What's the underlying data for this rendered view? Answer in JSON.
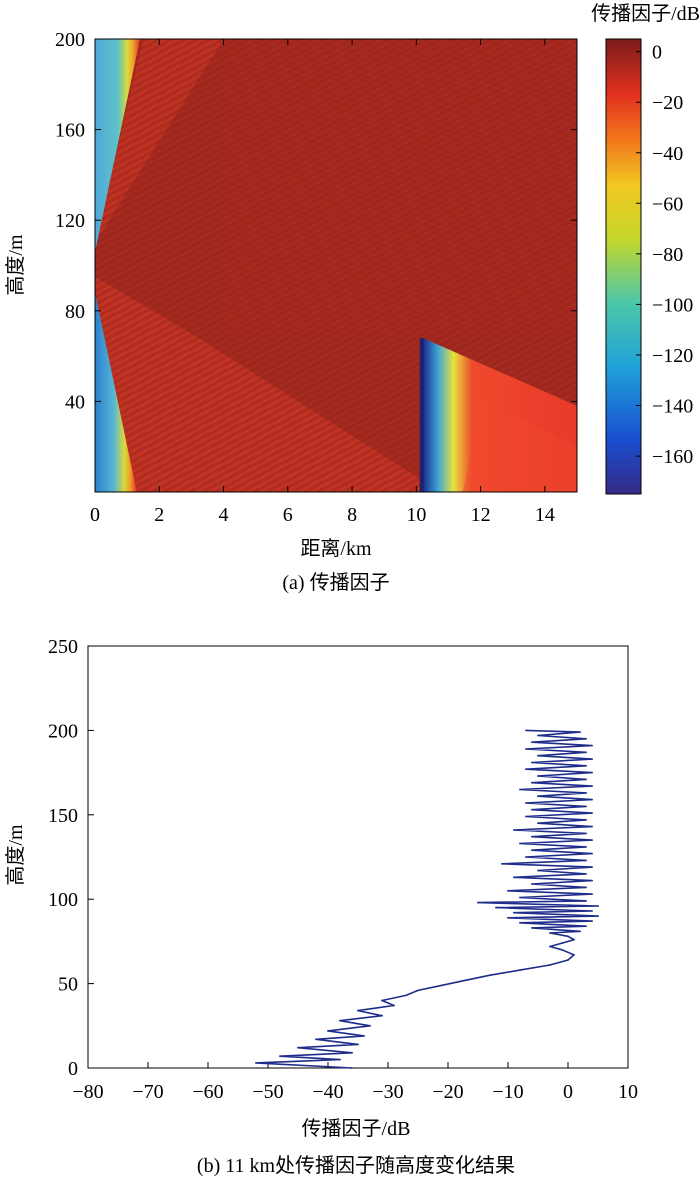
{
  "chart_data": [
    {
      "type": "heatmap",
      "title": "",
      "caption": "(a) 传播因子",
      "xlabel": "距离/km",
      "ylabel": "高度/m",
      "xlim": [
        0,
        15
      ],
      "ylim": [
        0,
        200
      ],
      "xticks": [
        0,
        2,
        4,
        6,
        8,
        10,
        12,
        14
      ],
      "yticks": [
        40,
        80,
        120,
        160,
        200
      ],
      "xtick_labels": [
        "0",
        "2",
        "4",
        "6",
        "8",
        "10",
        "12",
        "14"
      ],
      "ytick_labels": [
        "40",
        "80",
        "120",
        "160",
        "200"
      ],
      "colorbar": {
        "label": "传播因子/dB",
        "range": [
          -175,
          5
        ],
        "ticks": [
          0,
          -20,
          -40,
          -60,
          -80,
          -100,
          -120,
          -140,
          -160
        ],
        "tick_labels": [
          "0",
          "−20",
          "−40",
          "−60",
          "−80",
          "−100",
          "−120",
          "−140",
          "−160"
        ],
        "colormap": "jet"
      },
      "features": {
        "background_dB": -5,
        "source_height_m": 100,
        "near_source_low_region_dB": -120,
        "shadow_start_km": 10.2,
        "shadow_top_m": 68,
        "shadow_region_dB": -20,
        "shadow_edge_dB": -170
      }
    },
    {
      "type": "line",
      "title": "",
      "caption": "(b) 11 km处传播因子随高度变化结果",
      "xlabel": "传播因子/dB",
      "ylabel": "高度/m",
      "xlim": [
        -80,
        10
      ],
      "ylim": [
        0,
        250
      ],
      "xticks": [
        -80,
        -70,
        -60,
        -50,
        -40,
        -30,
        -20,
        -10,
        0,
        10
      ],
      "yticks": [
        0,
        50,
        100,
        150,
        200,
        250
      ],
      "xtick_labels": [
        "−80",
        "−70",
        "−60",
        "−50",
        "−40",
        "−30",
        "−20",
        "−10",
        "0",
        "10"
      ],
      "ytick_labels": [
        "0",
        "50",
        "100",
        "150",
        "200",
        "250"
      ],
      "series": [
        {
          "color": "#1f2d8a",
          "points": [
            [
              -36,
              0
            ],
            [
              -52,
              3
            ],
            [
              -38,
              5
            ],
            [
              -48,
              7
            ],
            [
              -36,
              9
            ],
            [
              -45,
              12
            ],
            [
              -35,
              14
            ],
            [
              -42,
              17
            ],
            [
              -34,
              19
            ],
            [
              -40,
              22
            ],
            [
              -33,
              25
            ],
            [
              -38,
              28
            ],
            [
              -31,
              31
            ],
            [
              -35,
              34
            ],
            [
              -29,
              37
            ],
            [
              -31,
              40
            ],
            [
              -27,
              43
            ],
            [
              -25,
              46
            ],
            [
              -21,
              49
            ],
            [
              -17,
              52
            ],
            [
              -13,
              55
            ],
            [
              -8,
              58
            ],
            [
              -3,
              61
            ],
            [
              0,
              64
            ],
            [
              1,
              67
            ],
            [
              -1,
              70
            ],
            [
              -3,
              72
            ],
            [
              -1,
              74
            ],
            [
              1,
              76
            ],
            [
              0,
              78
            ],
            [
              -3,
              80
            ],
            [
              2,
              81
            ],
            [
              -6,
              83
            ],
            [
              3,
              84
            ],
            [
              -8,
              86
            ],
            [
              4,
              87
            ],
            [
              -10,
              89
            ],
            [
              5,
              90
            ],
            [
              -9,
              92
            ],
            [
              4,
              93
            ],
            [
              -12,
              95
            ],
            [
              5,
              96
            ],
            [
              -15,
              98
            ],
            [
              3,
              99
            ],
            [
              -8,
              101
            ],
            [
              4,
              103
            ],
            [
              -10,
              105
            ],
            [
              3,
              107
            ],
            [
              -6,
              109
            ],
            [
              4,
              111
            ],
            [
              -9,
              113
            ],
            [
              3,
              115
            ],
            [
              -5,
              117
            ],
            [
              4,
              119
            ],
            [
              -11,
              121
            ],
            [
              3,
              123
            ],
            [
              -7,
              125
            ],
            [
              4,
              127
            ],
            [
              -6,
              129
            ],
            [
              3,
              131
            ],
            [
              -8,
              133
            ],
            [
              4,
              135
            ],
            [
              -6,
              137
            ],
            [
              3,
              139
            ],
            [
              -9,
              141
            ],
            [
              4,
              143
            ],
            [
              -5,
              145
            ],
            [
              3,
              147
            ],
            [
              -7,
              149
            ],
            [
              4,
              151
            ],
            [
              -6,
              153
            ],
            [
              3,
              155
            ],
            [
              -7,
              157
            ],
            [
              4,
              159
            ],
            [
              -5,
              161
            ],
            [
              3,
              163
            ],
            [
              -8,
              165
            ],
            [
              4,
              167
            ],
            [
              -6,
              169
            ],
            [
              3,
              171
            ],
            [
              -5,
              173
            ],
            [
              4,
              175
            ],
            [
              -7,
              177
            ],
            [
              3,
              179
            ],
            [
              -6,
              181
            ],
            [
              4,
              183
            ],
            [
              -5,
              185
            ],
            [
              3,
              187
            ],
            [
              -7,
              189
            ],
            [
              4,
              191
            ],
            [
              -6,
              193
            ],
            [
              3,
              195
            ],
            [
              -5,
              197
            ],
            [
              2,
              199
            ],
            [
              -7,
              200
            ]
          ]
        }
      ]
    }
  ]
}
